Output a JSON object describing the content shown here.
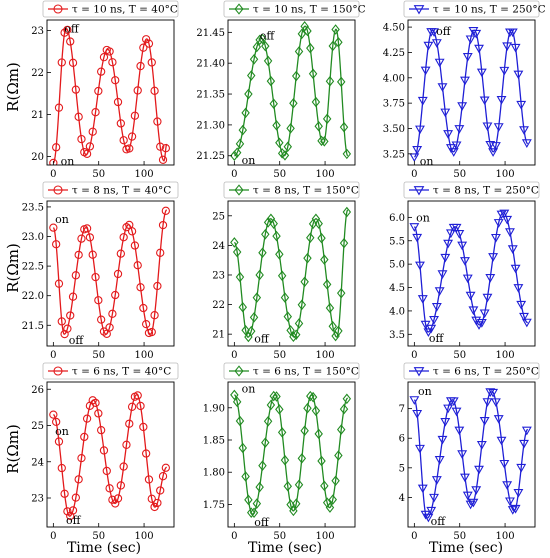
{
  "figure": {
    "ylabel": "R(Ωm)",
    "xlabel": "Time (sec)"
  },
  "chart_data": [
    {
      "type": "line",
      "row": 0,
      "col": 0,
      "title": "τ = 10 ns, T = 40°C",
      "series_label": "τ = 10 ns, T = 40°C",
      "color": "#e31a1c",
      "marker": "circle",
      "xlabel": "",
      "ylabel": "R(Ωm)",
      "xlim": [
        -7,
        133
      ],
      "ylim": [
        19.8,
        23.25
      ],
      "xticks": [
        0,
        50,
        100
      ],
      "yticks": [
        20,
        21,
        22,
        23
      ],
      "ytick_labels": [
        "20",
        "21",
        "22",
        "23"
      ],
      "annotations": [
        {
          "text": "on",
          "x": 8,
          "y": 19.9
        },
        {
          "text": "off",
          "x": 12,
          "y": 23.05
        }
      ],
      "curve": {
        "x0": 0,
        "x1": 125,
        "y0": 19.85,
        "peaks": [
          {
            "x": 14,
            "y": 23.05
          },
          {
            "x": 60,
            "y": 22.55
          },
          {
            "x": 103,
            "y": 22.8
          }
        ],
        "troughs": [
          {
            "x": 36,
            "y": 20.05
          },
          {
            "x": 82,
            "y": 20.15
          },
          {
            "x": 122,
            "y": 19.9
          }
        ],
        "y_end": 20.3
      }
    },
    {
      "type": "line",
      "row": 0,
      "col": 1,
      "title": "τ = 10 ns, T = 150°C",
      "series_label": "τ = 10 ns, T = 150°C",
      "color": "#228b22",
      "marker": "diamond",
      "xlabel": "",
      "ylabel": "",
      "xlim": [
        -7,
        133
      ],
      "ylim": [
        21.235,
        21.47
      ],
      "xticks": [
        0,
        50,
        100
      ],
      "yticks": [
        21.25,
        21.3,
        21.35,
        21.4,
        21.45
      ],
      "ytick_labels": [
        "21.25",
        "21.30",
        "21.35",
        "21.40",
        "21.45"
      ],
      "annotations": [
        {
          "text": "on",
          "x": 8,
          "y": 21.243
        },
        {
          "text": "off",
          "x": 28,
          "y": 21.445
        }
      ],
      "curve": {
        "x0": 0,
        "x1": 125,
        "y0": 21.25,
        "peaks": [
          {
            "x": 30,
            "y": 21.44
          },
          {
            "x": 78,
            "y": 21.46
          },
          {
            "x": 112,
            "y": 21.455
          }
        ],
        "troughs": [
          {
            "x": 55,
            "y": 21.25
          },
          {
            "x": 98,
            "y": 21.27
          }
        ],
        "y_end": 21.25
      }
    },
    {
      "type": "line",
      "row": 0,
      "col": 2,
      "title": "τ = 10 ns, T = 250°C",
      "series_label": "τ = 10 ns, T = 250°C",
      "color": "#1f1fd6",
      "marker": "triangle-down",
      "xlabel": "",
      "ylabel": "",
      "xlim": [
        -7,
        133
      ],
      "ylim": [
        3.14,
        4.57
      ],
      "xticks": [
        0,
        50,
        100
      ],
      "yticks": [
        3.25,
        3.5,
        3.75,
        4.0,
        4.25,
        4.5
      ],
      "ytick_labels": [
        "3.25",
        "3.50",
        "3.75",
        "4.00",
        "4.25",
        "4.50"
      ],
      "annotations": [
        {
          "text": "on",
          "x": 6,
          "y": 3.18
        },
        {
          "text": "off",
          "x": 24,
          "y": 4.46
        }
      ],
      "curve": {
        "x0": 0,
        "x1": 125,
        "y0": 3.22,
        "peaks": [
          {
            "x": 20,
            "y": 4.47
          },
          {
            "x": 66,
            "y": 4.47
          },
          {
            "x": 107,
            "y": 4.47
          }
        ],
        "troughs": [
          {
            "x": 43,
            "y": 3.27
          },
          {
            "x": 87,
            "y": 3.27
          }
        ],
        "y_end": 3.35
      }
    },
    {
      "type": "line",
      "row": 1,
      "col": 0,
      "title": "τ = 8 ns, T = 40°C",
      "series_label": "τ = 8 ns, T = 40°C",
      "color": "#e31a1c",
      "marker": "circle",
      "xlabel": "",
      "ylabel": "R(Ωm)",
      "xlim": [
        -7,
        133
      ],
      "ylim": [
        21.15,
        23.6
      ],
      "xticks": [
        0,
        50,
        100
      ],
      "yticks": [
        21.5,
        22.0,
        22.5,
        23.0,
        23.5
      ],
      "ytick_labels": [
        "21.5",
        "22.0",
        "22.5",
        "23.0",
        "23.5"
      ],
      "annotations": [
        {
          "text": "on",
          "x": 2,
          "y": 23.3
        },
        {
          "text": "off",
          "x": 17,
          "y": 21.25
        }
      ],
      "curve": {
        "x0": 0,
        "x1": 125,
        "y0": 23.15,
        "peaks": [
          {
            "x": 36,
            "y": 23.15
          },
          {
            "x": 83,
            "y": 23.2
          }
        ],
        "troughs": [
          {
            "x": 12,
            "y": 21.35
          },
          {
            "x": 58,
            "y": 21.35
          },
          {
            "x": 107,
            "y": 21.35
          }
        ],
        "y_end": 23.45
      }
    },
    {
      "type": "line",
      "row": 1,
      "col": 1,
      "title": "τ = 8 ns, T = 150°C",
      "series_label": "τ = 8 ns, T = 150°C",
      "color": "#228b22",
      "marker": "diamond",
      "xlabel": "",
      "ylabel": "",
      "xlim": [
        -7,
        133
      ],
      "ylim": [
        20.6,
        25.5
      ],
      "xticks": [
        0,
        50,
        100
      ],
      "yticks": [
        21,
        22,
        23,
        24,
        25
      ],
      "ytick_labels": [
        "21",
        "22",
        "23",
        "24",
        "25"
      ],
      "annotations": [
        {
          "text": "off",
          "x": 22,
          "y": 20.85
        }
      ],
      "curve": {
        "x0": 0,
        "x1": 125,
        "y0": 24.1,
        "peaks": [
          {
            "x": 40,
            "y": 24.9
          },
          {
            "x": 90,
            "y": 24.9
          }
        ],
        "troughs": [
          {
            "x": 15,
            "y": 20.9
          },
          {
            "x": 66,
            "y": 20.9
          },
          {
            "x": 113,
            "y": 20.9
          }
        ],
        "y_end": 25.2
      }
    },
    {
      "type": "line",
      "row": 1,
      "col": 2,
      "title": "τ = 8 ns, T = 250°C",
      "series_label": "τ = 8 ns, T = 250°C",
      "color": "#1f1fd6",
      "marker": "triangle-down",
      "xlabel": "",
      "ylabel": "",
      "xlim": [
        -7,
        133
      ],
      "ylim": [
        3.25,
        6.35
      ],
      "xticks": [
        0,
        50,
        100
      ],
      "yticks": [
        3.5,
        4.0,
        4.5,
        5.0,
        5.5,
        6.0
      ],
      "ytick_labels": [
        "3.5",
        "4.0",
        "4.5",
        "5.0",
        "5.5",
        "6.0"
      ],
      "annotations": [
        {
          "text": "on",
          "x": 2,
          "y": 6.0
        },
        {
          "text": "off",
          "x": 16,
          "y": 3.42
        }
      ],
      "curve": {
        "x0": 0,
        "x1": 125,
        "y0": 5.8,
        "peaks": [
          {
            "x": 45,
            "y": 5.8
          },
          {
            "x": 98,
            "y": 6.1
          }
        ],
        "troughs": [
          {
            "x": 15,
            "y": 3.55
          },
          {
            "x": 72,
            "y": 3.7
          }
        ],
        "y_end": 3.75
      }
    },
    {
      "type": "line",
      "row": 2,
      "col": 0,
      "title": "τ = 6 ns, T = 40°C",
      "series_label": "τ = 6 ns, T = 40°C",
      "color": "#e31a1c",
      "marker": "circle",
      "xlabel": "Time (sec)",
      "ylabel": "R(Ωm)",
      "xlim": [
        -7,
        133
      ],
      "ylim": [
        22.2,
        26.2
      ],
      "xticks": [
        0,
        50,
        100
      ],
      "yticks": [
        23,
        24,
        25,
        26
      ],
      "ytick_labels": [
        "23",
        "24",
        "25",
        "26"
      ],
      "annotations": [
        {
          "text": "on",
          "x": 2,
          "y": 24.85
        },
        {
          "text": "off",
          "x": 14,
          "y": 22.4
        }
      ],
      "curve": {
        "x0": 0,
        "x1": 125,
        "y0": 25.3,
        "peaks": [
          {
            "x": 44,
            "y": 25.7
          },
          {
            "x": 92,
            "y": 25.85
          }
        ],
        "troughs": [
          {
            "x": 18,
            "y": 22.5
          },
          {
            "x": 68,
            "y": 22.85
          },
          {
            "x": 112,
            "y": 22.75
          }
        ],
        "y_end": 23.85
      }
    },
    {
      "type": "line",
      "row": 2,
      "col": 1,
      "title": "τ = 6 ns, T = 150°C",
      "series_label": "τ = 6 ns, T = 150°C",
      "color": "#228b22",
      "marker": "diamond",
      "xlabel": "Time (sec)",
      "ylabel": "",
      "xlim": [
        -7,
        133
      ],
      "ylim": [
        1.715,
        1.94
      ],
      "xticks": [
        0,
        50,
        100
      ],
      "yticks": [
        1.75,
        1.8,
        1.85,
        1.9
      ],
      "ytick_labels": [
        "1.75",
        "1.80",
        "1.85",
        "1.90"
      ],
      "annotations": [
        {
          "text": "on",
          "x": 8,
          "y": 1.93
        },
        {
          "text": "off",
          "x": 22,
          "y": 1.723
        }
      ],
      "curve": {
        "x0": 0,
        "x1": 125,
        "y0": 1.92,
        "peaks": [
          {
            "x": 45,
            "y": 1.92
          },
          {
            "x": 85,
            "y": 1.92
          },
          {
            "x": 125,
            "y": 1.915
          }
        ],
        "troughs": [
          {
            "x": 20,
            "y": 1.735
          },
          {
            "x": 65,
            "y": 1.74
          },
          {
            "x": 105,
            "y": 1.745
          }
        ],
        "y_end": 1.915
      }
    },
    {
      "type": "line",
      "row": 2,
      "col": 2,
      "title": "τ = 6 ns, T = 250°C",
      "series_label": "τ = 6 ns, T = 250°C",
      "color": "#1f1fd6",
      "marker": "triangle-down",
      "xlabel": "Time (sec)",
      "ylabel": "",
      "xlim": [
        -7,
        133
      ],
      "ylim": [
        3.0,
        7.9
      ],
      "xticks": [
        0,
        50,
        100
      ],
      "yticks": [
        4,
        5,
        6,
        7
      ],
      "ytick_labels": [
        "4",
        "5",
        "6",
        "7"
      ],
      "annotations": [
        {
          "text": "on",
          "x": 4,
          "y": 7.6
        },
        {
          "text": "off",
          "x": 18,
          "y": 3.2
        }
      ],
      "curve": {
        "x0": 0,
        "x1": 125,
        "y0": 7.3,
        "peaks": [
          {
            "x": 42,
            "y": 7.3
          },
          {
            "x": 85,
            "y": 7.6
          }
        ],
        "troughs": [
          {
            "x": 14,
            "y": 3.3
          },
          {
            "x": 63,
            "y": 3.75
          },
          {
            "x": 110,
            "y": 3.55
          }
        ],
        "y_end": 6.3
      }
    }
  ]
}
